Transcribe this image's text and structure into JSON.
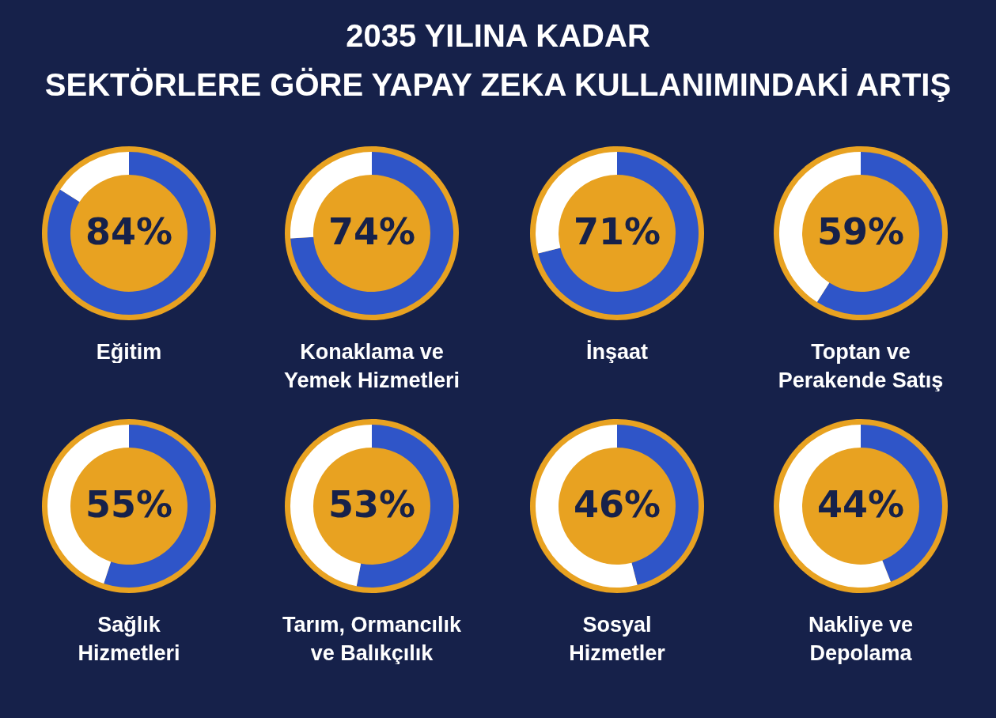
{
  "chart_data": [
    {
      "type": "other",
      "title": "2035 YILINA KADAR",
      "subtitle": "SEKTÖRLERE GÖRE YAPAY ZEKA KULLANIMINDAKİ ARTIŞ"
    },
    {
      "type": "donut",
      "title": "Eğitim",
      "categories": [
        null,
        null
      ],
      "values": [
        84,
        16
      ],
      "colors": [
        "#2f55c8",
        "#ffffff"
      ],
      "value_labels": [
        "84%",
        null
      ]
    },
    {
      "type": "donut",
      "title": "Konaklama ve\nYemek Hizmetleri",
      "categories": [
        null,
        null
      ],
      "values": [
        74,
        26
      ],
      "colors": [
        "#2f55c8",
        "#ffffff"
      ],
      "value_labels": [
        "74%",
        null
      ]
    },
    {
      "type": "donut",
      "title": "İnşaat",
      "categories": [
        null,
        null
      ],
      "values": [
        71,
        29
      ],
      "colors": [
        "#2f55c8",
        "#ffffff"
      ],
      "value_labels": [
        "71%",
        null
      ]
    },
    {
      "type": "donut",
      "title": "Toptan ve\nPerakende Satış",
      "categories": [
        null,
        null
      ],
      "values": [
        59,
        41
      ],
      "colors": [
        "#2f55c8",
        "#ffffff"
      ],
      "value_labels": [
        "59%",
        null
      ]
    },
    {
      "type": "donut",
      "title": "Sağlık\nHizmetleri",
      "categories": [
        null,
        null
      ],
      "values": [
        55,
        45
      ],
      "colors": [
        "#2f55c8",
        "#ffffff"
      ],
      "value_labels": [
        "55%",
        null
      ]
    },
    {
      "type": "donut",
      "title": "Tarım, Ormancılık\nve Balıkçılık",
      "categories": [
        null,
        null
      ],
      "values": [
        53,
        47
      ],
      "colors": [
        "#2f55c8",
        "#ffffff"
      ],
      "value_labels": [
        "53%",
        null
      ]
    },
    {
      "type": "donut",
      "title": "Sosyal\nHizmetler",
      "categories": [
        null,
        null
      ],
      "values": [
        46,
        54
      ],
      "colors": [
        "#2f55c8",
        "#ffffff"
      ],
      "value_labels": [
        "46%",
        null
      ]
    },
    {
      "type": "donut",
      "title": "Nakliye ve\nDepolama",
      "categories": [
        null,
        null
      ],
      "values": [
        44,
        56
      ],
      "colors": [
        "#2f55c8",
        "#ffffff"
      ],
      "value_labels": [
        "44%",
        null
      ]
    }
  ]
}
